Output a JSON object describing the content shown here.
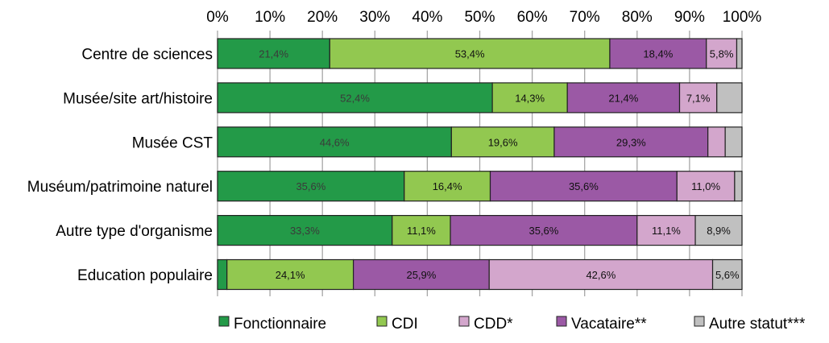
{
  "chart_data": {
    "type": "bar",
    "orientation": "horizontal",
    "stacked": "percent",
    "xlim": [
      0,
      100
    ],
    "x_ticks": [
      "0%",
      "10%",
      "20%",
      "30%",
      "40%",
      "50%",
      "60%",
      "70%",
      "80%",
      "90%",
      "100%"
    ],
    "x_axis_position": "top",
    "grid": true,
    "legend_position": "bottom",
    "categories": [
      "Centre de sciences",
      "Musée/site art/histoire",
      "Musée CST",
      "Muséum/patrimoine naturel",
      "Autre type d'organisme",
      "Education populaire"
    ],
    "series": [
      {
        "name": "Fonctionnaire",
        "color": "#239a48",
        "values": [
          21.4,
          52.4,
          44.6,
          35.6,
          33.3,
          1.8
        ],
        "labels": [
          "21,4%",
          "52,4%",
          "44,6%",
          "35,6%",
          "33,3%",
          ""
        ]
      },
      {
        "name": "CDI",
        "color": "#92c850",
        "values": [
          53.4,
          14.3,
          19.6,
          16.4,
          11.1,
          24.1
        ],
        "labels": [
          "53,4%",
          "14,3%",
          "19,6%",
          "16,4%",
          "11,1%",
          "24,1%"
        ]
      },
      {
        "name": "Vacataire**",
        "color": "#9b59a5",
        "values": [
          18.4,
          21.4,
          29.3,
          35.6,
          35.6,
          25.9
        ],
        "labels": [
          "18,4%",
          "21,4%",
          "29,3%",
          "35,6%",
          "35,6%",
          "25,9%"
        ]
      },
      {
        "name": "CDD*",
        "color": "#d3a6cc",
        "values": [
          5.8,
          7.1,
          3.3,
          11.0,
          11.1,
          42.6
        ],
        "labels": [
          "5,8%",
          "7,1%",
          "",
          "11,0%",
          "11,1%",
          "42,6%"
        ]
      },
      {
        "name": "Autre statut***",
        "color": "#c0c0c0",
        "values": [
          1.0,
          4.8,
          3.2,
          1.4,
          8.9,
          5.6
        ],
        "labels": [
          "",
          "",
          "",
          "",
          "8,9%",
          "5,6%"
        ]
      }
    ],
    "legend_order": [
      "Fonctionnaire",
      "CDI",
      "CDD*",
      "Vacataire**",
      "Autre statut***"
    ]
  }
}
